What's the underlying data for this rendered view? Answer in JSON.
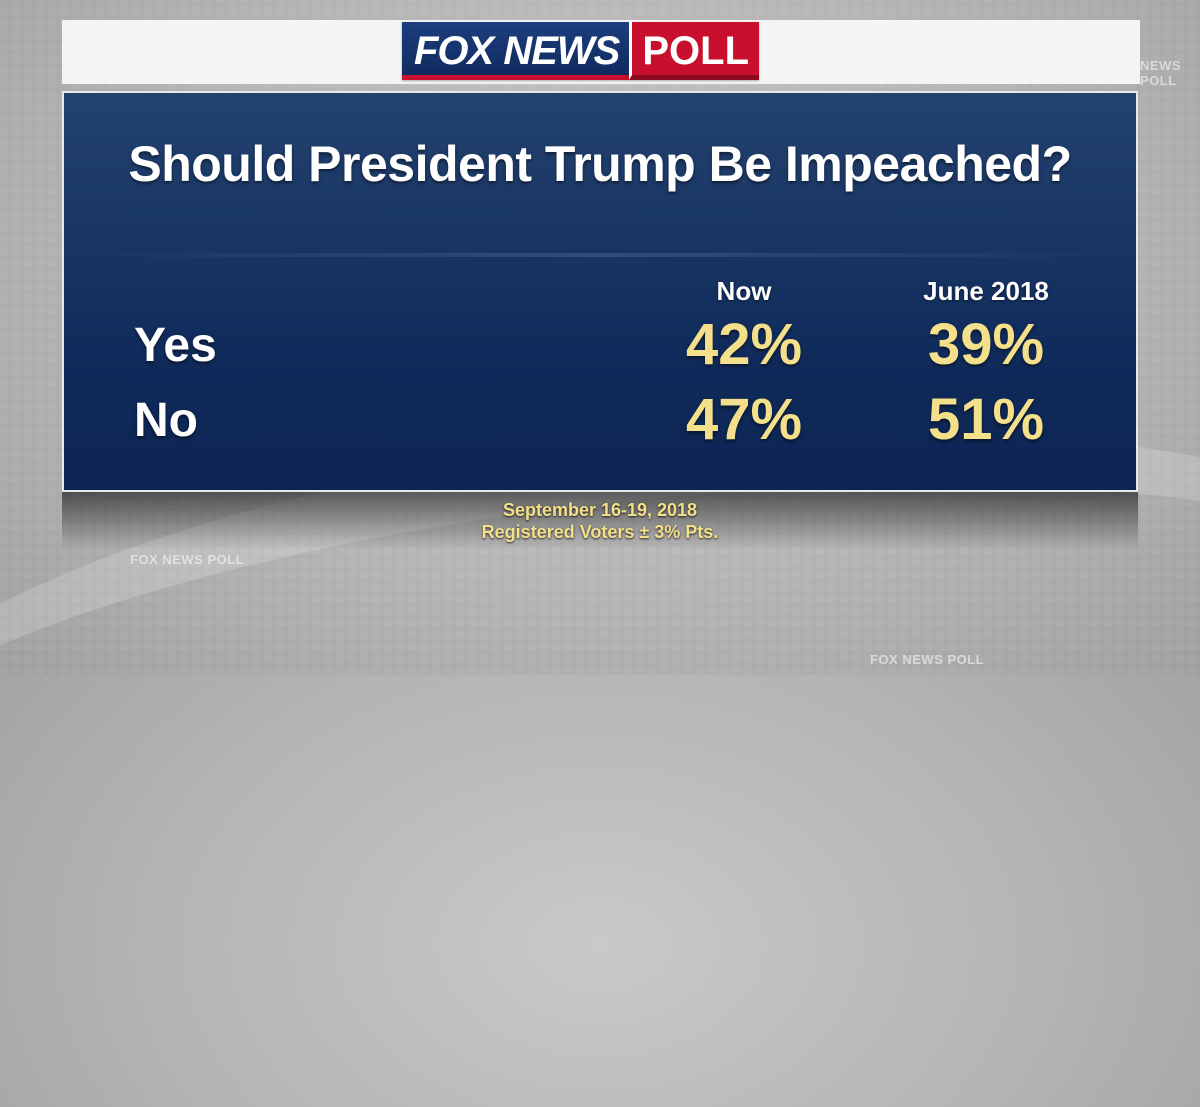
{
  "logo": {
    "brand": "FOX NEWS",
    "suffix": "POLL"
  },
  "background_marks": [
    "FOX NEWS POLL",
    "FOX NEWS POLL",
    "NEWS POLL"
  ],
  "colors": {
    "panel": "#173463",
    "value_text": "#f4e08a",
    "logo_red": "#c8102e",
    "logo_blue": "#1d3f7f"
  },
  "chart_data": {
    "type": "table",
    "title": "Should President Trump Be Impeached?",
    "columns": [
      "Now",
      "June 2018"
    ],
    "rows": [
      {
        "label": "Yes",
        "values": [
          "42%",
          "39%"
        ]
      },
      {
        "label": "No",
        "values": [
          "47%",
          "51%"
        ]
      }
    ]
  },
  "footer": {
    "dates": "September 16-19, 2018",
    "sample": "Registered Voters ± 3% Pts."
  }
}
